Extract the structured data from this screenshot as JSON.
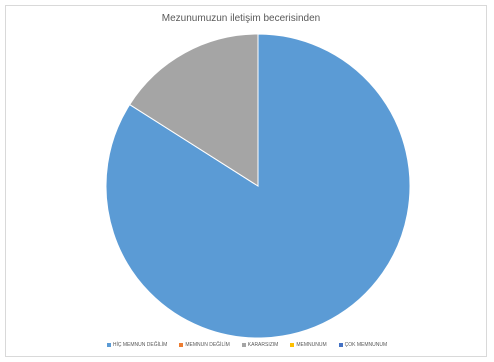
{
  "chart_data": {
    "type": "pie",
    "title": "Mezunumuzun iletişim becerisinden",
    "categories": [
      "HİÇ MEMNUN DEĞİLİM",
      "MEMNUN DEĞİLİM",
      "KARARSIZIM",
      "MEMNUNUM",
      "ÇOK MEMNUNUM"
    ],
    "values": [
      84,
      0,
      16,
      0,
      0
    ],
    "colors": [
      "#5b9bd5",
      "#ed7d31",
      "#a5a5a5",
      "#ffc000",
      "#4472c4"
    ],
    "legend": "bottom",
    "start_angle_deg": 0,
    "direction": "clockwise"
  }
}
